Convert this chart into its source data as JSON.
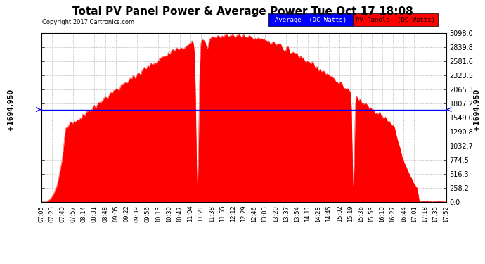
{
  "title": "Total PV Panel Power & Average Power Tue Oct 17 18:08",
  "copyright": "Copyright 2017 Cartronics.com",
  "average_value": 1694.95,
  "y_max": 3098.0,
  "y_ticks": [
    0.0,
    258.2,
    516.3,
    774.5,
    1032.7,
    1290.8,
    1549.0,
    1807.2,
    2065.3,
    2323.5,
    2581.6,
    2839.8,
    3098.0
  ],
  "background_color": "#ffffff",
  "fill_color": "#ff0000",
  "avg_line_color": "#0000ff",
  "grid_color": "#bbbbbb",
  "legend_avg_label": "Average  (DC Watts)",
  "legend_pv_label": "PV Panels  (DC Watts)",
  "x_labels": [
    "07:05",
    "07:23",
    "07:40",
    "07:57",
    "08:14",
    "08:31",
    "08:48",
    "09:05",
    "09:22",
    "09:39",
    "09:56",
    "10:13",
    "10:30",
    "10:47",
    "11:04",
    "11:21",
    "11:38",
    "11:55",
    "12:12",
    "12:29",
    "12:46",
    "13:03",
    "13:20",
    "13:37",
    "13:54",
    "14:11",
    "14:28",
    "14:45",
    "15:02",
    "15:19",
    "15:36",
    "15:53",
    "16:10",
    "16:27",
    "16:44",
    "17:01",
    "17:18",
    "17:35",
    "17:52"
  ]
}
